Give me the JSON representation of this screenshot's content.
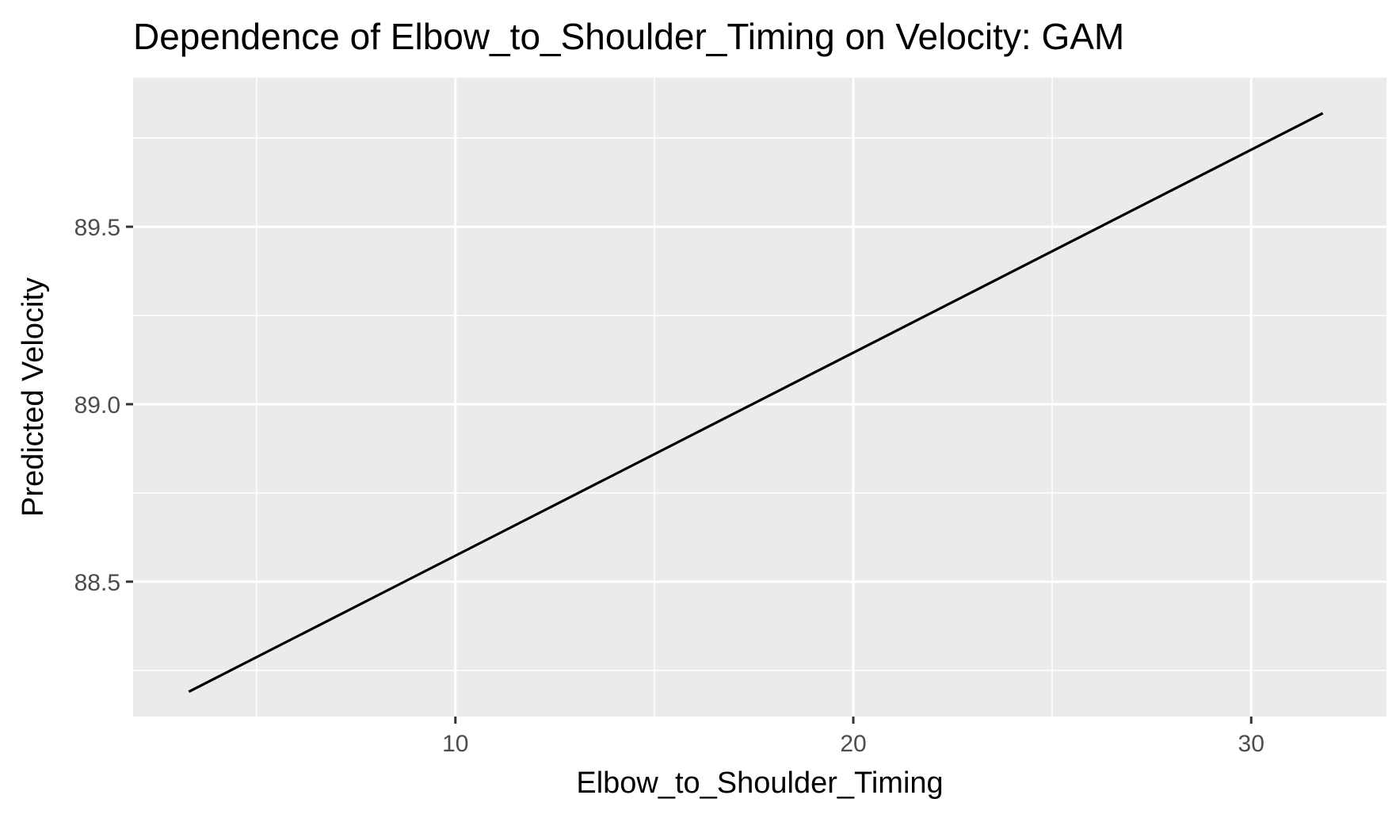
{
  "chart_data": {
    "type": "line",
    "title": "Dependence of Elbow_to_Shoulder_Timing on Velocity: GAM",
    "xlabel": "Elbow_to_Shoulder_Timing",
    "ylabel": "Predicted Velocity",
    "xlim": [
      1.9,
      33.4
    ],
    "ylim": [
      88.12,
      89.92
    ],
    "x_ticks": [
      10,
      20,
      30
    ],
    "x_tick_labels": [
      "10",
      "20",
      "30"
    ],
    "x_minor_ticks": [
      5,
      15,
      25
    ],
    "y_ticks": [
      88.5,
      89.0,
      89.5
    ],
    "y_tick_labels": [
      "88.5",
      "89.0",
      "89.5"
    ],
    "y_minor_ticks": [
      88.25,
      88.75,
      89.25,
      89.75
    ],
    "grid": true,
    "series": [
      {
        "color": "#000000",
        "x": [
          3.3,
          31.8
        ],
        "y": [
          88.19,
          89.82
        ]
      }
    ]
  },
  "colors": {
    "panel_background": "#ebebeb",
    "grid": "#ffffff",
    "line": "#000000",
    "tick_label": "#4d4d4d"
  }
}
